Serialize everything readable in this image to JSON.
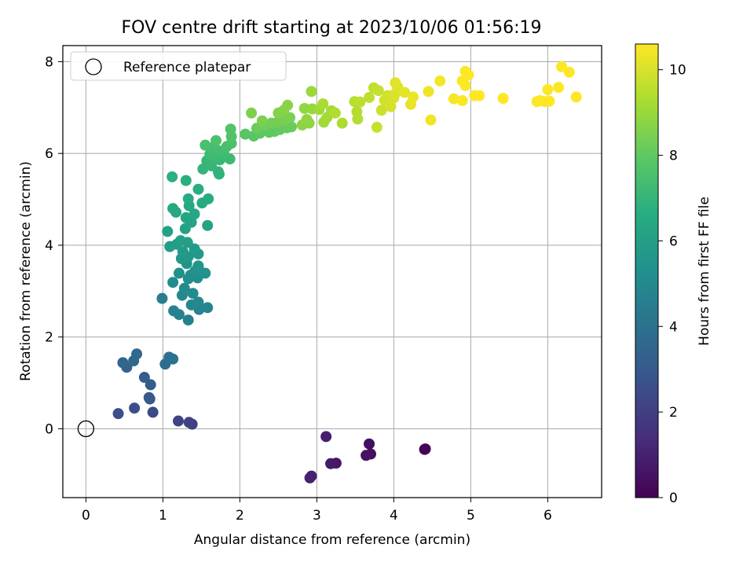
{
  "chart_data": {
    "type": "scatter",
    "title": "FOV centre drift starting at 2023/10/06 01:56:19",
    "xlabel": "Angular distance from reference (arcmin)",
    "ylabel": "Rotation from reference (arcmin)",
    "xlim": [
      -0.3,
      6.7
    ],
    "ylim": [
      -1.5,
      8.35
    ],
    "xticks": [
      0,
      1,
      2,
      3,
      4,
      5,
      6
    ],
    "yticks": [
      0,
      2,
      4,
      6,
      8
    ],
    "grid": true,
    "legend": {
      "placement": "top-left",
      "entries": [
        "Reference platepar"
      ]
    },
    "reference_point": {
      "x": 0,
      "y": 0
    },
    "colorbar": {
      "label": "Hours from first FF file",
      "colormap": "viridis",
      "range": [
        0,
        10.6
      ],
      "ticks": [
        0,
        2,
        4,
        6,
        8,
        10
      ]
    },
    "points": [
      {
        "x": 4.4,
        "y": -0.45,
        "c": 0.05
      },
      {
        "x": 4.41,
        "y": -0.44,
        "c": 0.1
      },
      {
        "x": 3.7,
        "y": -0.55,
        "c": 0.4
      },
      {
        "x": 3.68,
        "y": -0.33,
        "c": 0.45
      },
      {
        "x": 3.64,
        "y": -0.58,
        "c": 0.5
      },
      {
        "x": 3.25,
        "y": -0.75,
        "c": 0.7
      },
      {
        "x": 3.18,
        "y": -0.76,
        "c": 0.8
      },
      {
        "x": 3.12,
        "y": -0.17,
        "c": 0.9
      },
      {
        "x": 2.93,
        "y": -1.03,
        "c": 1.0
      },
      {
        "x": 2.91,
        "y": -1.07,
        "c": 1.05
      },
      {
        "x": 1.38,
        "y": 0.1,
        "c": 2.0
      },
      {
        "x": 1.34,
        "y": 0.14,
        "c": 2.1
      },
      {
        "x": 1.2,
        "y": 0.17,
        "c": 2.2
      },
      {
        "x": 0.87,
        "y": 0.36,
        "c": 2.4
      },
      {
        "x": 0.63,
        "y": 0.45,
        "c": 2.5
      },
      {
        "x": 0.42,
        "y": 0.33,
        "c": 2.6
      },
      {
        "x": 0.83,
        "y": 0.65,
        "c": 2.9
      },
      {
        "x": 0.82,
        "y": 0.68,
        "c": 3.0
      },
      {
        "x": 0.84,
        "y": 0.96,
        "c": 3.1
      },
      {
        "x": 0.76,
        "y": 1.12,
        "c": 3.2
      },
      {
        "x": 0.53,
        "y": 1.34,
        "c": 3.4
      },
      {
        "x": 0.48,
        "y": 1.44,
        "c": 3.5
      },
      {
        "x": 0.62,
        "y": 1.48,
        "c": 3.6
      },
      {
        "x": 0.66,
        "y": 1.63,
        "c": 3.7
      },
      {
        "x": 1.03,
        "y": 1.41,
        "c": 3.8
      },
      {
        "x": 1.08,
        "y": 1.56,
        "c": 3.9
      },
      {
        "x": 1.13,
        "y": 1.52,
        "c": 4.0
      },
      {
        "x": 0.99,
        "y": 2.84,
        "c": 4.5
      },
      {
        "x": 1.33,
        "y": 2.37,
        "c": 4.6
      },
      {
        "x": 1.21,
        "y": 2.49,
        "c": 4.7
      },
      {
        "x": 1.14,
        "y": 2.57,
        "c": 4.75
      },
      {
        "x": 1.47,
        "y": 2.6,
        "c": 4.8
      },
      {
        "x": 1.58,
        "y": 2.64,
        "c": 4.85
      },
      {
        "x": 1.37,
        "y": 2.7,
        "c": 4.9
      },
      {
        "x": 1.46,
        "y": 2.76,
        "c": 4.95
      },
      {
        "x": 1.25,
        "y": 2.91,
        "c": 5.0
      },
      {
        "x": 1.39,
        "y": 2.95,
        "c": 5.05
      },
      {
        "x": 1.28,
        "y": 3.06,
        "c": 5.1
      },
      {
        "x": 1.13,
        "y": 3.19,
        "c": 5.15
      },
      {
        "x": 1.33,
        "y": 3.27,
        "c": 5.2
      },
      {
        "x": 1.45,
        "y": 3.29,
        "c": 5.25
      },
      {
        "x": 1.36,
        "y": 3.35,
        "c": 5.3
      },
      {
        "x": 1.21,
        "y": 3.39,
        "c": 5.35
      },
      {
        "x": 1.55,
        "y": 3.39,
        "c": 5.4
      },
      {
        "x": 1.42,
        "y": 3.44,
        "c": 5.45
      },
      {
        "x": 1.46,
        "y": 3.55,
        "c": 5.5
      },
      {
        "x": 1.31,
        "y": 3.6,
        "c": 5.55
      },
      {
        "x": 1.24,
        "y": 3.71,
        "c": 5.6
      },
      {
        "x": 1.33,
        "y": 3.75,
        "c": 5.65
      },
      {
        "x": 1.46,
        "y": 3.81,
        "c": 5.7
      },
      {
        "x": 1.26,
        "y": 3.86,
        "c": 5.75
      },
      {
        "x": 1.41,
        "y": 3.92,
        "c": 5.8
      },
      {
        "x": 1.09,
        "y": 3.97,
        "c": 5.85
      },
      {
        "x": 1.18,
        "y": 4.02,
        "c": 5.9
      },
      {
        "x": 1.32,
        "y": 4.06,
        "c": 5.95
      },
      {
        "x": 1.23,
        "y": 4.1,
        "c": 6.0
      },
      {
        "x": 1.06,
        "y": 4.3,
        "c": 6.05
      },
      {
        "x": 1.29,
        "y": 4.36,
        "c": 6.1
      },
      {
        "x": 1.58,
        "y": 4.43,
        "c": 6.15
      },
      {
        "x": 1.37,
        "y": 4.5,
        "c": 6.2
      },
      {
        "x": 1.3,
        "y": 4.6,
        "c": 6.25
      },
      {
        "x": 1.41,
        "y": 4.68,
        "c": 6.3
      },
      {
        "x": 1.17,
        "y": 4.72,
        "c": 6.35
      },
      {
        "x": 1.13,
        "y": 4.8,
        "c": 6.4
      },
      {
        "x": 1.34,
        "y": 4.86,
        "c": 6.45
      },
      {
        "x": 1.51,
        "y": 4.92,
        "c": 6.5
      },
      {
        "x": 1.33,
        "y": 5.01,
        "c": 6.55
      },
      {
        "x": 1.59,
        "y": 5.01,
        "c": 6.6
      },
      {
        "x": 1.46,
        "y": 5.22,
        "c": 6.65
      },
      {
        "x": 1.3,
        "y": 5.41,
        "c": 6.7
      },
      {
        "x": 1.12,
        "y": 5.49,
        "c": 6.75
      },
      {
        "x": 1.73,
        "y": 5.55,
        "c": 6.85
      },
      {
        "x": 1.72,
        "y": 5.6,
        "c": 6.9
      },
      {
        "x": 1.52,
        "y": 5.66,
        "c": 6.95
      },
      {
        "x": 1.63,
        "y": 5.73,
        "c": 7.0
      },
      {
        "x": 1.57,
        "y": 5.84,
        "c": 7.05
      },
      {
        "x": 1.74,
        "y": 5.86,
        "c": 7.1
      },
      {
        "x": 1.87,
        "y": 5.88,
        "c": 7.15
      },
      {
        "x": 1.68,
        "y": 5.92,
        "c": 7.2
      },
      {
        "x": 1.61,
        "y": 5.98,
        "c": 7.25
      },
      {
        "x": 1.79,
        "y": 6.02,
        "c": 7.3
      },
      {
        "x": 1.72,
        "y": 6.06,
        "c": 7.35
      },
      {
        "x": 1.64,
        "y": 6.12,
        "c": 7.4
      },
      {
        "x": 1.83,
        "y": 6.15,
        "c": 7.45
      },
      {
        "x": 1.55,
        "y": 6.18,
        "c": 7.5
      },
      {
        "x": 1.89,
        "y": 6.22,
        "c": 7.55
      },
      {
        "x": 1.69,
        "y": 6.28,
        "c": 7.6
      },
      {
        "x": 1.89,
        "y": 6.37,
        "c": 7.65
      },
      {
        "x": 1.88,
        "y": 6.53,
        "c": 7.7
      },
      {
        "x": 2.07,
        "y": 6.42,
        "c": 7.8
      },
      {
        "x": 2.18,
        "y": 6.38,
        "c": 7.85
      },
      {
        "x": 2.26,
        "y": 6.44,
        "c": 7.9
      },
      {
        "x": 2.38,
        "y": 6.46,
        "c": 7.95
      },
      {
        "x": 2.45,
        "y": 6.48,
        "c": 8.0
      },
      {
        "x": 2.52,
        "y": 6.52,
        "c": 8.05
      },
      {
        "x": 2.61,
        "y": 6.56,
        "c": 8.1
      },
      {
        "x": 2.67,
        "y": 6.58,
        "c": 8.15
      },
      {
        "x": 2.22,
        "y": 6.55,
        "c": 8.2
      },
      {
        "x": 2.33,
        "y": 6.62,
        "c": 8.25
      },
      {
        "x": 2.41,
        "y": 6.66,
        "c": 8.3
      },
      {
        "x": 2.49,
        "y": 6.68,
        "c": 8.35
      },
      {
        "x": 2.57,
        "y": 6.72,
        "c": 8.4
      },
      {
        "x": 2.65,
        "y": 6.78,
        "c": 8.45
      },
      {
        "x": 2.29,
        "y": 6.71,
        "c": 8.5
      },
      {
        "x": 2.15,
        "y": 6.88,
        "c": 8.55
      },
      {
        "x": 2.5,
        "y": 6.88,
        "c": 8.6
      },
      {
        "x": 2.57,
        "y": 6.94,
        "c": 8.65
      },
      {
        "x": 2.62,
        "y": 7.05,
        "c": 8.7
      },
      {
        "x": 2.81,
        "y": 6.62,
        "c": 8.75
      },
      {
        "x": 2.9,
        "y": 6.66,
        "c": 8.8
      },
      {
        "x": 2.87,
        "y": 6.74,
        "c": 8.85
      },
      {
        "x": 2.84,
        "y": 6.98,
        "c": 8.9
      },
      {
        "x": 2.94,
        "y": 6.97,
        "c": 8.95
      },
      {
        "x": 2.93,
        "y": 7.35,
        "c": 9.0
      },
      {
        "x": 3.03,
        "y": 6.96,
        "c": 9.05
      },
      {
        "x": 3.09,
        "y": 6.68,
        "c": 9.1
      },
      {
        "x": 3.13,
        "y": 6.78,
        "c": 9.15
      },
      {
        "x": 3.19,
        "y": 6.93,
        "c": 9.2
      },
      {
        "x": 3.08,
        "y": 7.08,
        "c": 9.25
      },
      {
        "x": 3.33,
        "y": 6.66,
        "c": 9.3
      },
      {
        "x": 3.24,
        "y": 6.88,
        "c": 9.35
      },
      {
        "x": 3.53,
        "y": 6.75,
        "c": 9.4
      },
      {
        "x": 3.52,
        "y": 6.91,
        "c": 9.45
      },
      {
        "x": 3.49,
        "y": 7.13,
        "c": 9.5
      },
      {
        "x": 3.56,
        "y": 7.12,
        "c": 9.55
      },
      {
        "x": 3.68,
        "y": 7.22,
        "c": 9.6
      },
      {
        "x": 3.74,
        "y": 7.43,
        "c": 9.65
      },
      {
        "x": 3.8,
        "y": 7.37,
        "c": 9.7
      },
      {
        "x": 3.78,
        "y": 6.57,
        "c": 9.75
      },
      {
        "x": 3.84,
        "y": 6.94,
        "c": 9.8
      },
      {
        "x": 3.88,
        "y": 7.16,
        "c": 9.85
      },
      {
        "x": 3.92,
        "y": 7.26,
        "c": 9.9
      },
      {
        "x": 3.96,
        "y": 7.02,
        "c": 9.95
      },
      {
        "x": 4.0,
        "y": 7.21,
        "c": 10.0
      },
      {
        "x": 4.02,
        "y": 7.31,
        "c": 10.05
      },
      {
        "x": 4.05,
        "y": 7.45,
        "c": 10.1
      },
      {
        "x": 4.02,
        "y": 7.54,
        "c": 10.15
      },
      {
        "x": 4.14,
        "y": 7.33,
        "c": 10.2
      },
      {
        "x": 4.22,
        "y": 7.07,
        "c": 10.25
      },
      {
        "x": 4.25,
        "y": 7.23,
        "c": 10.3
      },
      {
        "x": 4.45,
        "y": 7.35,
        "c": 10.35
      },
      {
        "x": 4.48,
        "y": 6.73,
        "c": 10.4
      },
      {
        "x": 4.6,
        "y": 7.58,
        "c": 10.45
      },
      {
        "x": 4.78,
        "y": 7.19,
        "c": 10.5
      },
      {
        "x": 4.89,
        "y": 7.15,
        "c": 10.55
      },
      {
        "x": 4.89,
        "y": 7.58,
        "c": 10.6
      },
      {
        "x": 4.93,
        "y": 7.79,
        "c": 10.65
      },
      {
        "x": 4.97,
        "y": 7.71,
        "c": 10.7
      },
      {
        "x": 4.93,
        "y": 7.48,
        "c": 10.75
      },
      {
        "x": 5.05,
        "y": 7.26,
        "c": 10.8
      },
      {
        "x": 5.11,
        "y": 7.26,
        "c": 10.85
      },
      {
        "x": 5.42,
        "y": 7.2,
        "c": 10.9
      },
      {
        "x": 5.86,
        "y": 7.13,
        "c": 10.95
      },
      {
        "x": 5.9,
        "y": 7.15,
        "c": 11.0
      },
      {
        "x": 5.96,
        "y": 7.13,
        "c": 11.05
      },
      {
        "x": 6.02,
        "y": 7.14,
        "c": 11.1
      },
      {
        "x": 6.0,
        "y": 7.39,
        "c": 11.15
      },
      {
        "x": 6.14,
        "y": 7.44,
        "c": 11.2
      },
      {
        "x": 6.18,
        "y": 7.89,
        "c": 11.25
      },
      {
        "x": 6.28,
        "y": 7.77,
        "c": 11.3
      },
      {
        "x": 6.37,
        "y": 7.23,
        "c": 11.35
      }
    ]
  }
}
